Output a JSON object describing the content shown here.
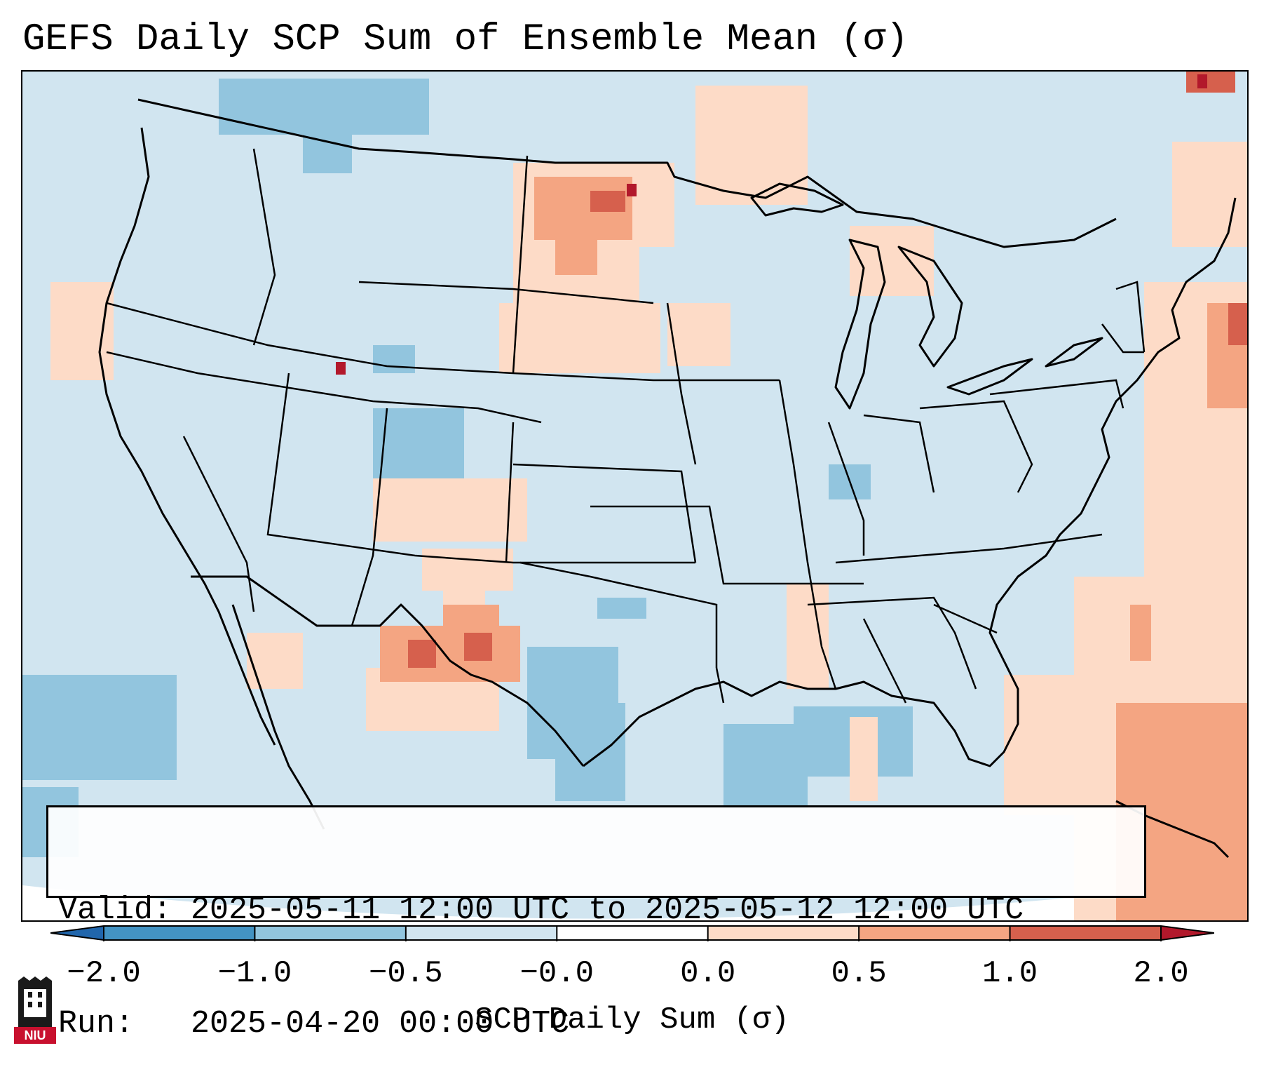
{
  "title": "GEFS Daily SCP Sum of Ensemble Mean (σ)",
  "map": {
    "region": "CONUS",
    "base_color": "#d1e5f0",
    "anomaly_patches": [
      {
        "area": "North Dakota",
        "level": "0.5 to 1.0"
      },
      {
        "area": "Montana–North Dakota border",
        "level": "1.0 to 2.0"
      },
      {
        "area": "Utah",
        "level": "1.0 to 2.0"
      },
      {
        "area": "New Mexico",
        "level": "0.5 to 1.0"
      },
      {
        "area": "Western Atlantic",
        "level": "0.5 to 1.0"
      },
      {
        "area": "Colorado",
        "level": "-1.0 to -0.5"
      },
      {
        "area": "Gulf of Mexico",
        "level": "-1.0 to -0.5"
      }
    ]
  },
  "info_box": {
    "valid_label": "Valid:",
    "valid_value": "2025-05-11 12:00 UTC to 2025-05-12 12:00 UTC",
    "run_label": "Run:",
    "run_value": "2025-04-20 00:00 UTC"
  },
  "colorbar": {
    "label": "SCP Daily Sum (σ)",
    "ticks": [
      "−2.0",
      "−1.0",
      "−0.5",
      "−0.0",
      "0.0",
      "0.5",
      "1.0",
      "2.0"
    ],
    "colors": [
      "#2166ac",
      "#4393c3",
      "#92c5de",
      "#d1e5f0",
      "#ffffff",
      "#fddbc7",
      "#f4a582",
      "#d6604d",
      "#b2182b"
    ]
  },
  "logo": {
    "text": "NIU",
    "color": "#c8102e"
  }
}
